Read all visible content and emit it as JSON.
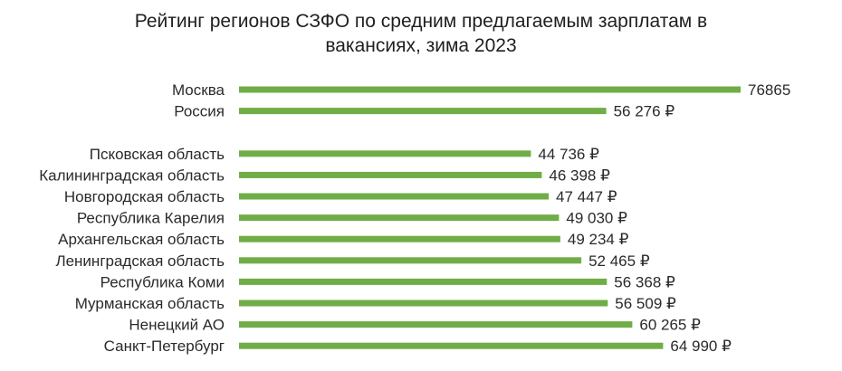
{
  "chart_data": {
    "type": "bar",
    "orientation": "horizontal",
    "title": "Рейтинг регионов СЗФО по средним предлагаемым зарплатам в вакансиях, зима 2023",
    "categories": [
      "Москва",
      "Россия",
      "",
      "Псковская область",
      "Калининградская область",
      "Новгородская область",
      "Республика Карелия",
      "Архангельская область",
      "Ленинградская область",
      "Республика Коми",
      "Мурманская область",
      "Ненецкий АО",
      "Санкт-Петербург"
    ],
    "values": [
      76865,
      56276,
      null,
      44736,
      46398,
      47447,
      49030,
      49234,
      52465,
      56368,
      56509,
      60265,
      64990
    ],
    "data_labels": [
      "76865",
      "56 276 ₽",
      "",
      "44 736 ₽",
      "46 398 ₽",
      "47 447 ₽",
      "49 030 ₽",
      "49 234 ₽",
      "52 465 ₽",
      "56 368 ₽",
      "56 509 ₽",
      "60 265 ₽",
      "64 990 ₽"
    ],
    "xlim": [
      0,
      76865
    ],
    "grid": false,
    "legend": "none",
    "bar_color": "#70AD47"
  }
}
